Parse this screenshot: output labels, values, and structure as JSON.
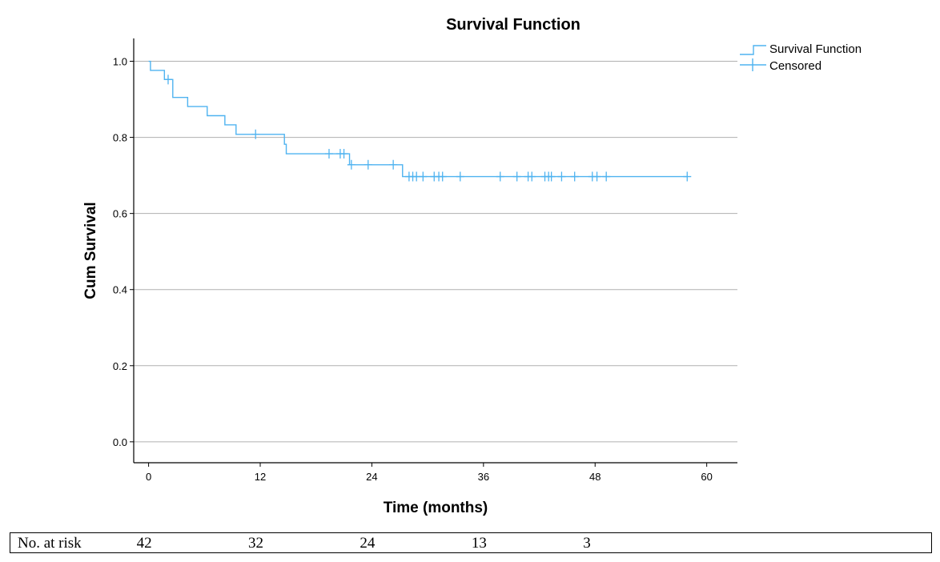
{
  "colors": {
    "curve": "#4fb3f0",
    "grid": "#b0b0b0",
    "axis": "#000000"
  },
  "chart_data": {
    "type": "line",
    "subtype": "kaplan-meier step",
    "title": "Survival Function",
    "xlabel": "Time (months)",
    "ylabel": "Cum Survival",
    "xlim": [
      -1.6,
      63.3
    ],
    "ylim": [
      -0.055,
      1.06
    ],
    "xticks": [
      0,
      12,
      24,
      36,
      48,
      60
    ],
    "xtick_labels": [
      "0",
      "12",
      "24",
      "36",
      "48",
      "60"
    ],
    "yticks": [
      0.0,
      0.2,
      0.4,
      0.6,
      0.8,
      1.0
    ],
    "ytick_labels": [
      "0.0",
      "0.2",
      "0.4",
      "0.6",
      "0.8",
      "1.0"
    ],
    "grid": "horizontal",
    "legend": {
      "position": "top-right",
      "entries": [
        "Survival Function",
        "Censored"
      ]
    },
    "series": [
      {
        "name": "Survival Function",
        "steps": [
          {
            "x": 0.0,
            "y": 1.0
          },
          {
            "x": 0.2,
            "y": 0.976
          },
          {
            "x": 1.7,
            "y": 0.952
          },
          {
            "x": 2.6,
            "y": 0.905
          },
          {
            "x": 4.2,
            "y": 0.881
          },
          {
            "x": 6.3,
            "y": 0.857
          },
          {
            "x": 8.2,
            "y": 0.833
          },
          {
            "x": 9.4,
            "y": 0.808
          },
          {
            "x": 14.6,
            "y": 0.782
          },
          {
            "x": 14.8,
            "y": 0.757
          },
          {
            "x": 21.6,
            "y": 0.728
          },
          {
            "x": 27.3,
            "y": 0.697
          }
        ],
        "end_x": 57.9
      },
      {
        "name": "Censored",
        "points": [
          {
            "x": 2.1,
            "y": 0.952
          },
          {
            "x": 11.5,
            "y": 0.808
          },
          {
            "x": 19.4,
            "y": 0.757
          },
          {
            "x": 20.6,
            "y": 0.757
          },
          {
            "x": 21.0,
            "y": 0.757
          },
          {
            "x": 21.8,
            "y": 0.728
          },
          {
            "x": 23.6,
            "y": 0.728
          },
          {
            "x": 26.3,
            "y": 0.728
          },
          {
            "x": 28.0,
            "y": 0.697
          },
          {
            "x": 28.4,
            "y": 0.697
          },
          {
            "x": 28.8,
            "y": 0.697
          },
          {
            "x": 29.5,
            "y": 0.697
          },
          {
            "x": 30.7,
            "y": 0.697
          },
          {
            "x": 31.2,
            "y": 0.697
          },
          {
            "x": 31.6,
            "y": 0.697
          },
          {
            "x": 33.5,
            "y": 0.697
          },
          {
            "x": 37.8,
            "y": 0.697
          },
          {
            "x": 39.6,
            "y": 0.697
          },
          {
            "x": 40.8,
            "y": 0.697
          },
          {
            "x": 41.2,
            "y": 0.697
          },
          {
            "x": 42.6,
            "y": 0.697
          },
          {
            "x": 43.0,
            "y": 0.697
          },
          {
            "x": 43.3,
            "y": 0.697
          },
          {
            "x": 44.4,
            "y": 0.697
          },
          {
            "x": 45.8,
            "y": 0.697
          },
          {
            "x": 47.7,
            "y": 0.697
          },
          {
            "x": 48.2,
            "y": 0.697
          },
          {
            "x": 49.2,
            "y": 0.697
          },
          {
            "x": 57.9,
            "y": 0.697
          }
        ]
      }
    ]
  },
  "risk_table": {
    "label": "No. at risk",
    "times": [
      0,
      12,
      24,
      36,
      48
    ],
    "values": [
      "42",
      "32",
      "24",
      "13",
      "3"
    ]
  }
}
